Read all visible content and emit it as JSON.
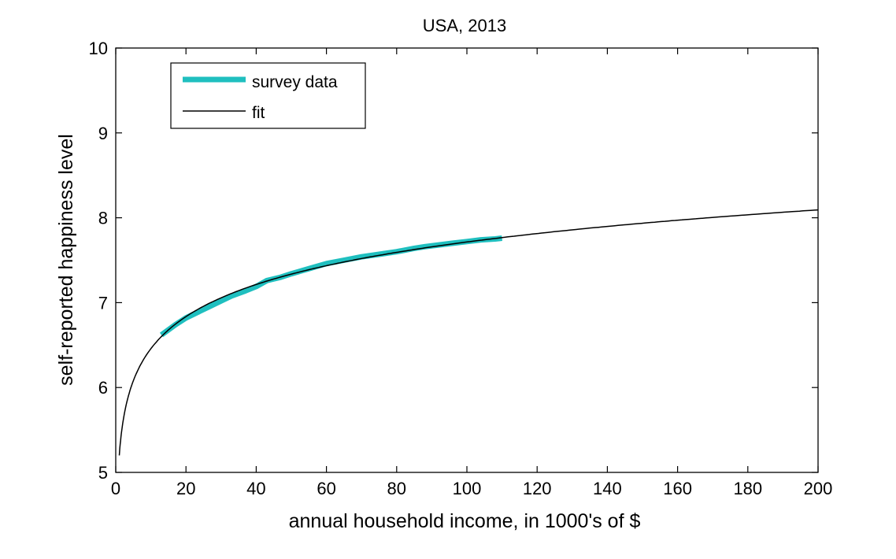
{
  "chart_data": {
    "type": "line",
    "title": "USA, 2013",
    "xlabel": "annual household income, in 1000's of $",
    "ylabel": "self-reported happiness level",
    "xlim": [
      0,
      200
    ],
    "ylim": [
      5,
      10
    ],
    "xticks": [
      0,
      20,
      40,
      60,
      80,
      100,
      120,
      140,
      160,
      180,
      200
    ],
    "yticks": [
      5,
      6,
      7,
      8,
      9,
      10
    ],
    "grid": false,
    "legend_position": "top-left",
    "series": [
      {
        "name": "survey data",
        "color": "#1fbfbf",
        "x": [
          13,
          15,
          17,
          20,
          23,
          27,
          30,
          33,
          37,
          40,
          43,
          47,
          50,
          55,
          60,
          65,
          70,
          75,
          80,
          85,
          88,
          92,
          96,
          100,
          104,
          108,
          110
        ],
        "y": [
          6.62,
          6.68,
          6.74,
          6.82,
          6.88,
          6.96,
          7.02,
          7.08,
          7.14,
          7.19,
          7.26,
          7.3,
          7.34,
          7.4,
          7.46,
          7.5,
          7.54,
          7.57,
          7.6,
          7.64,
          7.66,
          7.68,
          7.7,
          7.72,
          7.74,
          7.75,
          7.76
        ]
      },
      {
        "name": "fit",
        "color": "#000000",
        "model": "log",
        "a": 5.2,
        "b": 0.546,
        "x_start": 1,
        "x_end": 200
      }
    ]
  }
}
